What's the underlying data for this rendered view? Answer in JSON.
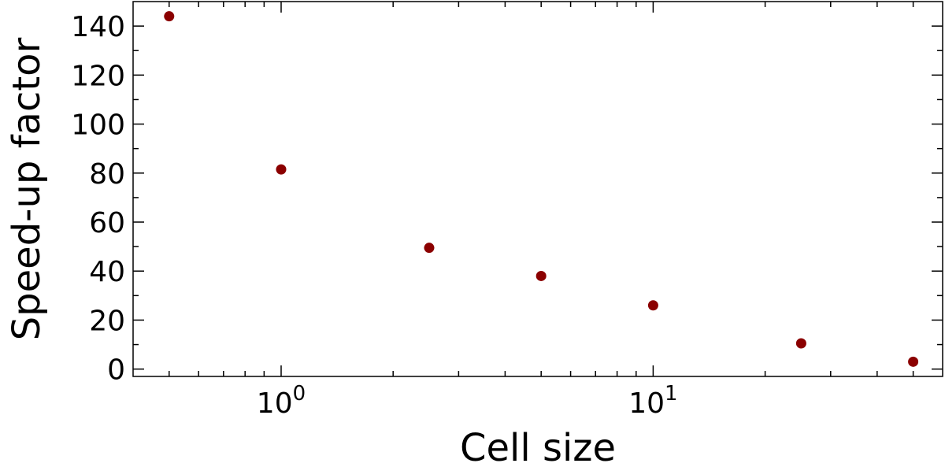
{
  "chart_data": {
    "type": "scatter",
    "title": "",
    "xlabel": "Cell size",
    "ylabel": "Speed-up factor",
    "x_scale": "log",
    "xlim": [
      0.4,
      60
    ],
    "ylim": [
      -3,
      150
    ],
    "x_ticks": [
      {
        "value": 1,
        "base": "10",
        "exponent": "0"
      },
      {
        "value": 10,
        "base": "10",
        "exponent": "1"
      }
    ],
    "y_ticks": [
      0,
      20,
      40,
      60,
      80,
      100,
      120,
      140
    ],
    "y_tick_labels": [
      "0",
      "20",
      "40",
      "60",
      "80",
      "100",
      "120",
      "140"
    ],
    "grid": false,
    "legend": "none",
    "marker_color": "#8b0000",
    "series": [
      {
        "x": [
          0.5,
          1,
          2.5,
          5,
          10,
          25,
          50
        ],
        "y": [
          144,
          81.5,
          49.5,
          38,
          26,
          10.5,
          3
        ]
      }
    ]
  }
}
